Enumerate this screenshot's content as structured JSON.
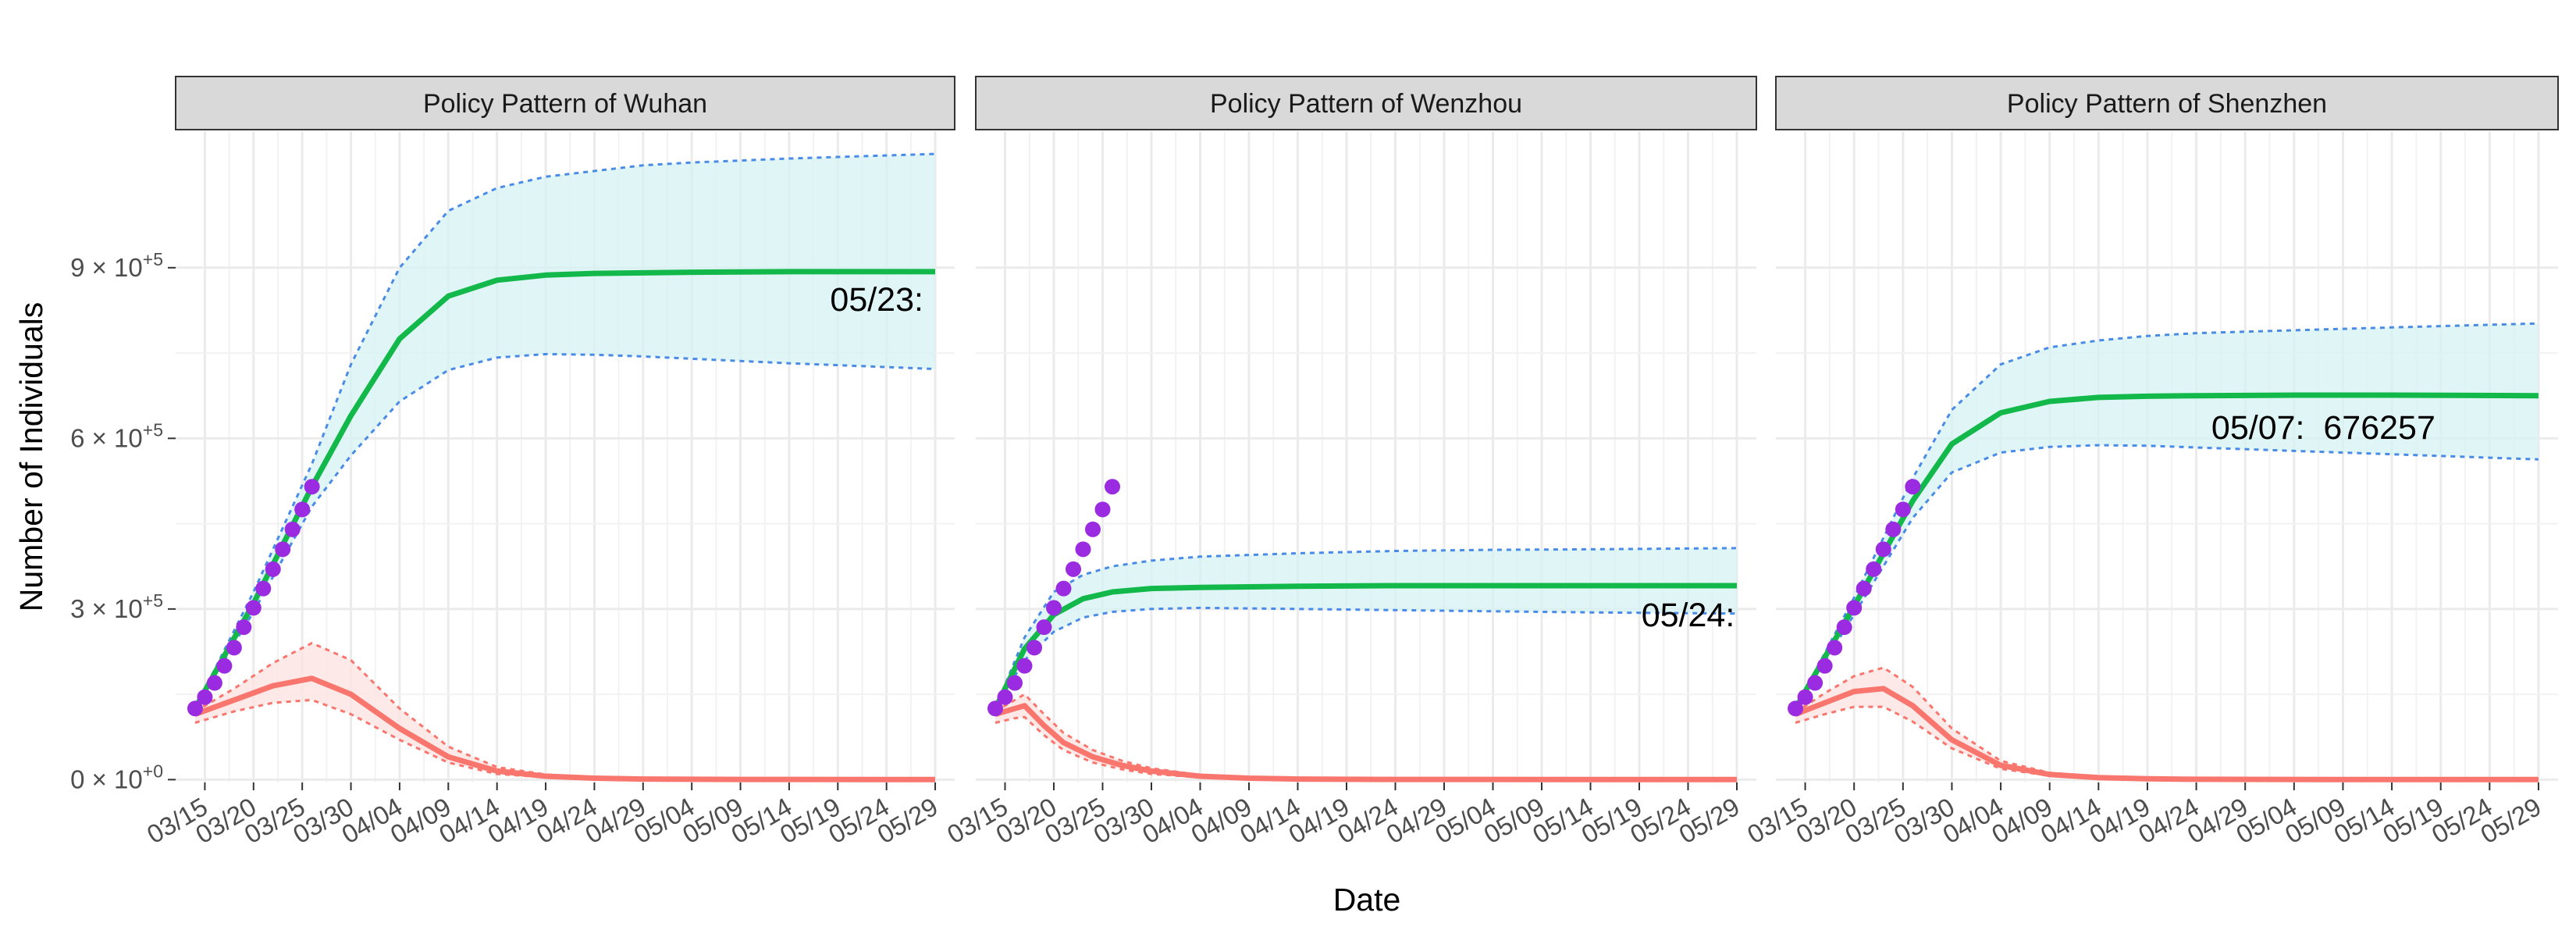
{
  "chart_data": {
    "type": "line",
    "xlabel": "Date",
    "ylabel": "Number of Individuals",
    "ylim": [
      -5000,
      1140000
    ],
    "xlim_days": [
      "03/12",
      "05/31"
    ],
    "grid": true,
    "y_ticks": [
      {
        "value": 0,
        "base": "0",
        "exp": "+0"
      },
      {
        "value": 300000,
        "base": "3",
        "exp": "+5"
      },
      {
        "value": 600000,
        "base": "6",
        "exp": "+5"
      },
      {
        "value": 900000,
        "base": "9",
        "exp": "+5"
      }
    ],
    "x_ticks": [
      "03/15",
      "03/20",
      "03/25",
      "03/30",
      "04/04",
      "04/09",
      "04/14",
      "04/19",
      "04/24",
      "04/29",
      "05/04",
      "05/09",
      "05/14",
      "05/19",
      "05/24",
      "05/29"
    ],
    "colors": {
      "cumulative": "#12b84a",
      "active": "#f8766d",
      "ci_cumulative": "#4a8be6",
      "ci_cumulative_fill": "#d6f3f3",
      "ci_active": "#f8766d",
      "ci_active_fill": "#fde3e1",
      "observed": "#9b2be0",
      "strip_fill": "#d9d9d9",
      "grid": "#ebebeb"
    },
    "observed": {
      "x": [
        "03/14",
        "03/15",
        "03/16",
        "03/17",
        "03/18",
        "03/19",
        "03/20",
        "03/21",
        "03/22",
        "03/23",
        "03/24",
        "03/25",
        "03/26"
      ],
      "values": [
        125000,
        145000,
        170000,
        200000,
        232000,
        268000,
        302000,
        336000,
        370000,
        405000,
        440000,
        475000,
        515000
      ]
    },
    "panels": [
      {
        "title": "Policy Pattern of Wuhan",
        "annotation": "05/23:",
        "annotation_x": "05/23",
        "annotation_y": 845000,
        "series": [
          {
            "role": "cumulative",
            "x": [
              "03/14",
              "03/20",
              "03/26",
              "03/30",
              "04/04",
              "04/09",
              "04/14",
              "04/19",
              "04/24",
              "04/29",
              "05/04",
              "05/14",
              "05/29"
            ],
            "values": [
              125000,
              310000,
              515000,
              640000,
              775000,
              850000,
              878000,
              887000,
              890000,
              891000,
              892000,
              893000,
              893000
            ]
          },
          {
            "role": "cumulative_upper",
            "x": [
              "03/14",
              "03/20",
              "03/26",
              "03/30",
              "04/04",
              "04/09",
              "04/14",
              "04/19",
              "04/24",
              "04/29",
              "05/04",
              "05/14",
              "05/29"
            ],
            "values": [
              125000,
              330000,
              555000,
              730000,
              900000,
              1000000,
              1040000,
              1060000,
              1070000,
              1080000,
              1085000,
              1092000,
              1100000
            ]
          },
          {
            "role": "cumulative_lower",
            "x": [
              "03/14",
              "03/20",
              "03/26",
              "03/30",
              "04/04",
              "04/09",
              "04/14",
              "04/19",
              "04/24",
              "04/29",
              "05/04",
              "05/14",
              "05/29"
            ],
            "values": [
              125000,
              295000,
              480000,
              570000,
              665000,
              720000,
              742000,
              748000,
              747000,
              744000,
              740000,
              732000,
              722000
            ]
          },
          {
            "role": "active",
            "x": [
              "03/14",
              "03/18",
              "03/22",
              "03/26",
              "03/30",
              "04/04",
              "04/09",
              "04/14",
              "04/19",
              "04/24",
              "04/29",
              "05/09",
              "05/29"
            ],
            "values": [
              115000,
              140000,
              165000,
              178000,
              150000,
              90000,
              40000,
              15000,
              6000,
              2500,
              1000,
              300,
              100
            ]
          },
          {
            "role": "active_upper",
            "x": [
              "03/14",
              "03/18",
              "03/22",
              "03/26",
              "03/30",
              "04/04",
              "04/09",
              "04/14",
              "04/19",
              "04/24",
              "04/29",
              "05/09",
              "05/29"
            ],
            "values": [
              120000,
              160000,
              205000,
              240000,
              210000,
              125000,
              58000,
              22000,
              9000,
              4000,
              1500,
              500,
              200
            ]
          },
          {
            "role": "active_lower",
            "x": [
              "03/14",
              "03/18",
              "03/22",
              "03/26",
              "03/30",
              "04/04",
              "04/09",
              "04/14",
              "04/19",
              "04/24",
              "04/29",
              "05/09",
              "05/29"
            ],
            "values": [
              100000,
              120000,
              135000,
              140000,
              115000,
              70000,
              30000,
              10000,
              4000,
              1500,
              600,
              200,
              50
            ]
          }
        ]
      },
      {
        "title": "Policy Pattern of Wenzhou",
        "annotation": "05/24:",
        "annotation_x": "05/24",
        "annotation_y": 290000,
        "series": [
          {
            "role": "cumulative",
            "x": [
              "03/14",
              "03/17",
              "03/20",
              "03/23",
              "03/26",
              "03/30",
              "04/04",
              "04/14",
              "04/24",
              "05/04",
              "05/14",
              "05/29"
            ],
            "values": [
              125000,
              230000,
              290000,
              318000,
              330000,
              336000,
              338000,
              340000,
              341000,
              341000,
              341000,
              341000
            ]
          },
          {
            "role": "cumulative_upper",
            "x": [
              "03/14",
              "03/17",
              "03/20",
              "03/23",
              "03/26",
              "03/30",
              "04/04",
              "04/14",
              "04/24",
              "05/04",
              "05/14",
              "05/29"
            ],
            "values": [
              125000,
              250000,
              330000,
              360000,
              375000,
              385000,
              392000,
              398000,
              402000,
              404000,
              405000,
              407000
            ]
          },
          {
            "role": "cumulative_lower",
            "x": [
              "03/14",
              "03/17",
              "03/20",
              "03/23",
              "03/26",
              "03/30",
              "04/04",
              "04/14",
              "04/24",
              "05/04",
              "05/14",
              "05/29"
            ],
            "values": [
              125000,
              210000,
              260000,
              285000,
              295000,
              300000,
              302000,
              300000,
              298000,
              296000,
              294000,
              292000
            ]
          },
          {
            "role": "active",
            "x": [
              "03/14",
              "03/16",
              "03/17",
              "03/19",
              "03/21",
              "03/24",
              "03/27",
              "03/30",
              "04/04",
              "04/09",
              "04/14",
              "04/24",
              "05/29"
            ],
            "values": [
              115000,
              125000,
              130000,
              95000,
              65000,
              40000,
              25000,
              15000,
              6000,
              2500,
              1000,
              300,
              100
            ]
          },
          {
            "role": "active_upper",
            "x": [
              "03/14",
              "03/16",
              "03/17",
              "03/19",
              "03/21",
              "03/24",
              "03/27",
              "03/30",
              "04/04",
              "04/09",
              "04/14",
              "04/24",
              "05/29"
            ],
            "values": [
              120000,
              140000,
              150000,
              115000,
              82000,
              52000,
              33000,
              20000,
              8000,
              3500,
              1500,
              500,
              200
            ]
          },
          {
            "role": "active_lower",
            "x": [
              "03/14",
              "03/16",
              "03/17",
              "03/19",
              "03/21",
              "03/24",
              "03/27",
              "03/30",
              "04/04",
              "04/09",
              "04/14",
              "04/24",
              "05/29"
            ],
            "values": [
              100000,
              108000,
              110000,
              78000,
              52000,
              30000,
              18000,
              10000,
              4000,
              1500,
              600,
              200,
              50
            ]
          }
        ]
      },
      {
        "title": "Policy Pattern of Shenzhen",
        "annotation": "05/07:  676257",
        "annotation_x": "05/07",
        "annotation_y": 620000,
        "series": [
          {
            "role": "cumulative",
            "x": [
              "03/14",
              "03/20",
              "03/26",
              "03/30",
              "04/04",
              "04/09",
              "04/14",
              "04/19",
              "04/24",
              "05/04",
              "05/14",
              "05/29"
            ],
            "values": [
              125000,
              305000,
              490000,
              590000,
              645000,
              665000,
              672000,
              674000,
              675000,
              676000,
              676000,
              675000
            ]
          },
          {
            "role": "cumulative_upper",
            "x": [
              "03/14",
              "03/20",
              "03/26",
              "03/30",
              "04/04",
              "04/09",
              "04/14",
              "04/19",
              "04/24",
              "05/04",
              "05/14",
              "05/29"
            ],
            "values": [
              125000,
              320000,
              530000,
              650000,
              730000,
              760000,
              772000,
              780000,
              785000,
              790000,
              795000,
              802000
            ]
          },
          {
            "role": "cumulative_lower",
            "x": [
              "03/14",
              "03/20",
              "03/26",
              "03/30",
              "04/04",
              "04/09",
              "04/14",
              "04/19",
              "04/24",
              "05/04",
              "05/14",
              "05/29"
            ],
            "values": [
              125000,
              290000,
              460000,
              540000,
              575000,
              585000,
              588000,
              587000,
              584000,
              578000,
              572000,
              563000
            ]
          },
          {
            "role": "active",
            "x": [
              "03/14",
              "03/17",
              "03/20",
              "03/23",
              "03/26",
              "03/30",
              "04/04",
              "04/09",
              "04/14",
              "04/19",
              "04/24",
              "05/09",
              "05/29"
            ],
            "values": [
              115000,
              135000,
              155000,
              160000,
              130000,
              70000,
              25000,
              9000,
              3500,
              1500,
              600,
              200,
              100
            ]
          },
          {
            "role": "active_upper",
            "x": [
              "03/14",
              "03/17",
              "03/20",
              "03/23",
              "03/26",
              "03/30",
              "04/04",
              "04/09",
              "04/14",
              "04/19",
              "04/24",
              "05/09",
              "05/29"
            ],
            "values": [
              118000,
              152000,
              182000,
              197000,
              163000,
              90000,
              33000,
              12000,
              5000,
              2000,
              900,
              300,
              150
            ]
          },
          {
            "role": "active_lower",
            "x": [
              "03/14",
              "03/17",
              "03/20",
              "03/23",
              "03/26",
              "03/30",
              "04/04",
              "04/09",
              "04/14",
              "04/19",
              "04/24",
              "05/09",
              "05/29"
            ],
            "values": [
              100000,
              115000,
              128000,
              128000,
              102000,
              55000,
              19000,
              7000,
              2500,
              1000,
              400,
              100,
              50
            ]
          }
        ]
      }
    ]
  }
}
